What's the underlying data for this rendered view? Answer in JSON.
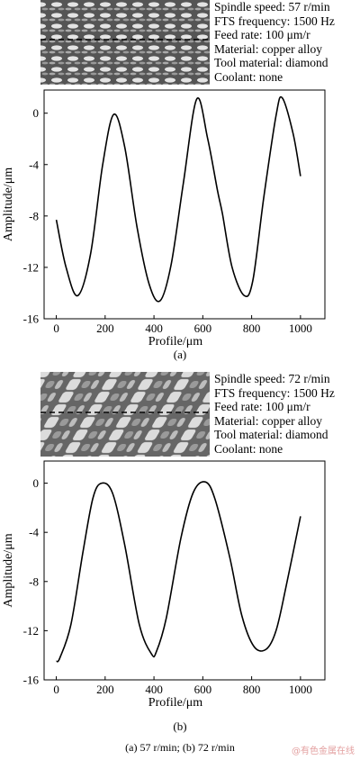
{
  "panels": [
    {
      "params": [
        "Spindle speed: 57 r/min",
        "FTS frequency: 1500 Hz",
        "Feed rate: 100 μm/r",
        "Material: copper alloy",
        "Tool material: diamond",
        "Coolant: none"
      ],
      "label": "(a)"
    },
    {
      "params": [
        "Spindle speed: 72 r/min",
        "FTS frequency: 1500 Hz",
        "Feed rate: 100 μm/r",
        "Material: copper alloy",
        "Tool material: diamond",
        "Coolant: none"
      ],
      "label": "(b)"
    }
  ],
  "caption": "(a) 57 r/min; (b) 72 r/min",
  "watermark": "@有色金属在线",
  "chart_data": [
    {
      "type": "line",
      "xlabel": "Profile/μm",
      "ylabel": "Amplitude/μm",
      "xlim": [
        -50,
        1100
      ],
      "ylim": [
        -16,
        1.8
      ],
      "xticks": [
        0,
        200,
        400,
        600,
        800,
        1000
      ],
      "yticks": [
        0,
        -4,
        -8,
        -12,
        -16
      ],
      "grid": false,
      "series": [
        {
          "x": [
            0,
            40,
            88,
            140,
            190,
            235,
            280,
            330,
            380,
            425,
            470,
            520,
            575,
            620,
            660,
            680,
            720,
            770,
            805,
            850,
            900,
            925,
            970,
            1000
          ],
          "y": [
            -8.3,
            -12.0,
            -14.2,
            -11.0,
            -4.0,
            -0.1,
            -2.6,
            -8.8,
            -13.3,
            -14.6,
            -11.8,
            -5.5,
            1.1,
            -2.0,
            -6.0,
            -7.8,
            -12.0,
            -14.2,
            -13.0,
            -6.5,
            -0.2,
            1.2,
            -1.6,
            -4.9
          ]
        }
      ]
    },
    {
      "type": "line",
      "xlabel": "Profile/μm",
      "ylabel": "Amplitude/μm",
      "xlim": [
        -50,
        1100
      ],
      "ylim": [
        -16,
        1.8
      ],
      "xticks": [
        0,
        200,
        400,
        600,
        800,
        1000
      ],
      "yticks": [
        0,
        -4,
        -8,
        -12,
        -16
      ],
      "grid": false,
      "series": [
        {
          "x": [
            0,
            15,
            60,
            110,
            150,
            185,
            230,
            280,
            340,
            390,
            410,
            450,
            510,
            560,
            610,
            650,
            710,
            760,
            810,
            860,
            900,
            940,
            1000
          ],
          "y": [
            -14.5,
            -14.2,
            -11.5,
            -5.5,
            -1.2,
            0.0,
            -0.8,
            -5.0,
            -11.5,
            -13.9,
            -13.7,
            -11.0,
            -4.5,
            -0.8,
            0.1,
            -1.3,
            -6.0,
            -10.8,
            -13.3,
            -13.5,
            -12.0,
            -8.5,
            -2.7
          ]
        }
      ]
    }
  ]
}
